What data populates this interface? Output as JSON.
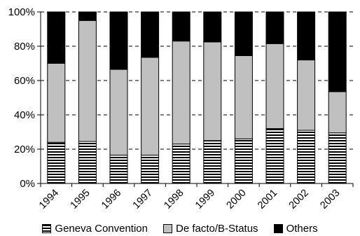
{
  "chart_data": {
    "type": "bar",
    "stacked": true,
    "categories": [
      "1994",
      "1995",
      "1996",
      "1997",
      "1998",
      "1999",
      "2000",
      "2001",
      "2002",
      "2003"
    ],
    "series": [
      {
        "name": "Geneva Convention",
        "values": [
          24,
          24.5,
          16.5,
          16.5,
          23,
          25,
          26,
          32,
          31,
          29.5
        ],
        "pattern": "horizontal-stripes"
      },
      {
        "name": "De facto/B-Status",
        "values": [
          46,
          70.5,
          50,
          57,
          60,
          57.5,
          48.5,
          49.5,
          41,
          24
        ],
        "color": "#c0c0c0"
      },
      {
        "name": "Others",
        "values": [
          30,
          5,
          33.5,
          26.5,
          17,
          17.5,
          25.5,
          18.5,
          28,
          46.5
        ],
        "color": "#000000"
      }
    ],
    "ylim": [
      0,
      100
    ],
    "yticks": [
      "0%",
      "20%",
      "40%",
      "60%",
      "80%",
      "100%"
    ],
    "grid": "dashed horizontal",
    "legend_position": "bottom"
  }
}
